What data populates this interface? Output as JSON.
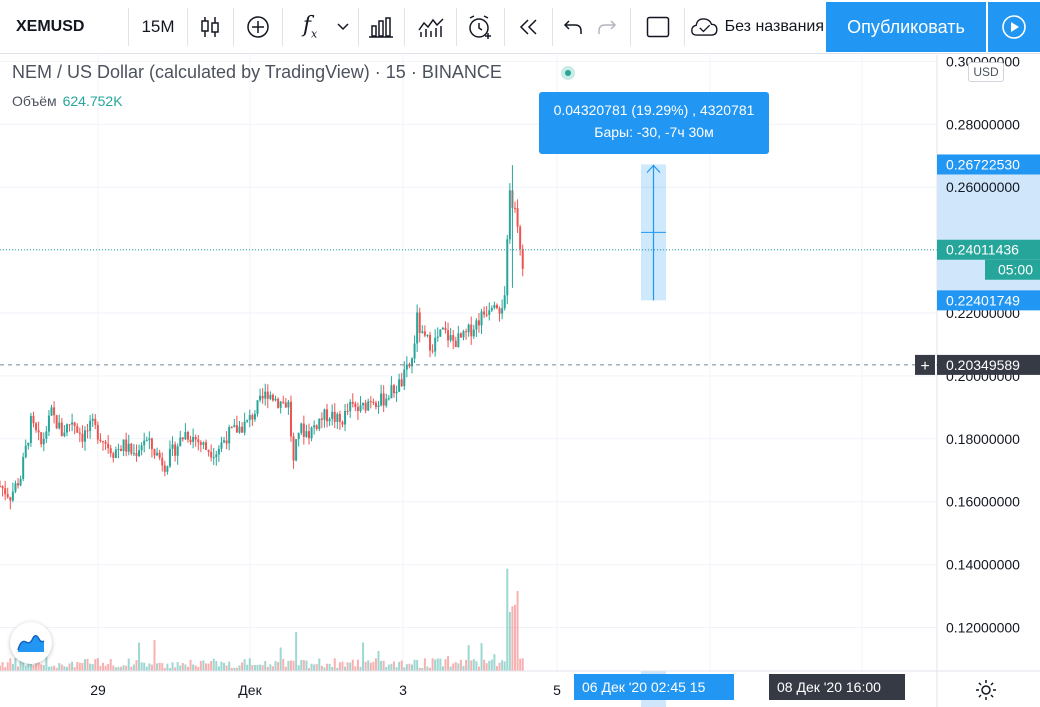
{
  "toolbar": {
    "symbol": "XEMUSD",
    "interval": "15M",
    "layout_name": "Без названия",
    "publish_label": "Опубликовать",
    "icons": [
      "candles-icon",
      "add-indicator-icon",
      "fx-icon",
      "chevron-down-icon",
      "bars-template-icon",
      "compare-icon",
      "alert-icon",
      "replay-icon",
      "undo-icon",
      "redo-icon",
      "fullscreen-icon",
      "cloud-save-icon",
      "play-icon"
    ]
  },
  "legend": {
    "title": "NEM / US Dollar (calculated by TradingView) · 15 · BINANCE",
    "volume_label": "Объём",
    "volume_value": "624.752K"
  },
  "currency_badge": "USD",
  "tooltip": {
    "line1": "0.04320781 (19.29%) , 4320781",
    "line2": "Бары: -30, -7ч 30м"
  },
  "price_axis": {
    "ticks": [
      "0.12000000",
      "0.14000000",
      "0.16000000",
      "0.18000000",
      "0.20000000",
      "0.22000000",
      "0.24000000",
      "0.26000000",
      "0.28000000",
      "0.30000000"
    ],
    "labels": {
      "range_top": "0.26722530",
      "last_price": "0.24011436",
      "countdown": "05:00",
      "range_bottom": "0.22401749",
      "crosshair": "0.20349589"
    }
  },
  "time_axis": {
    "ticks": [
      "29",
      "Дек",
      "3",
      "5"
    ],
    "range_label": "06 Дек '20   02:45  15",
    "crosshair_label": "08 Дек '20   16:00"
  },
  "colors": {
    "up": "#26a69a",
    "down": "#ef5350",
    "accent": "#2196f3",
    "last_price": "#26a69a",
    "crosshair_label": "#363a45"
  },
  "chart_data": {
    "type": "candlestick",
    "symbol": "XEMUSD",
    "interval": "15",
    "exchange": "BINANCE",
    "y_axis": {
      "min": 0.105,
      "max": 0.305,
      "unit": "USD"
    },
    "price_path": [
      [
        0,
        0.165
      ],
      [
        2,
        0.162
      ],
      [
        4,
        0.168
      ],
      [
        6,
        0.185
      ],
      [
        8,
        0.178
      ],
      [
        10,
        0.188
      ],
      [
        12,
        0.182
      ],
      [
        14,
        0.186
      ],
      [
        16,
        0.181
      ],
      [
        18,
        0.184
      ],
      [
        20,
        0.18
      ],
      [
        22,
        0.176
      ],
      [
        24,
        0.178
      ],
      [
        26,
        0.175
      ],
      [
        28,
        0.18
      ],
      [
        30,
        0.176
      ],
      [
        32,
        0.172
      ],
      [
        34,
        0.177
      ],
      [
        36,
        0.182
      ],
      [
        38,
        0.18
      ],
      [
        40,
        0.177
      ],
      [
        42,
        0.176
      ],
      [
        44,
        0.181
      ],
      [
        46,
        0.183
      ],
      [
        48,
        0.185
      ],
      [
        50,
        0.19
      ],
      [
        52,
        0.195
      ],
      [
        54,
        0.192
      ],
      [
        56,
        0.191
      ],
      [
        57,
        0.172
      ],
      [
        58,
        0.183
      ],
      [
        60,
        0.182
      ],
      [
        62,
        0.186
      ],
      [
        64,
        0.188
      ],
      [
        66,
        0.185
      ],
      [
        68,
        0.19
      ],
      [
        70,
        0.189
      ],
      [
        72,
        0.193
      ],
      [
        74,
        0.192
      ],
      [
        76,
        0.195
      ],
      [
        78,
        0.198
      ],
      [
        80,
        0.205
      ],
      [
        81,
        0.218
      ],
      [
        82,
        0.212
      ],
      [
        84,
        0.21
      ],
      [
        86,
        0.214
      ],
      [
        88,
        0.211
      ],
      [
        90,
        0.212
      ],
      [
        92,
        0.216
      ],
      [
        94,
        0.22
      ],
      [
        96,
        0.225
      ],
      [
        97,
        0.222
      ],
      [
        98,
        0.224
      ],
      [
        99,
        0.258
      ],
      [
        100,
        0.252
      ],
      [
        101,
        0.24
      ],
      [
        101.5,
        0.236
      ]
    ],
    "measure": {
      "from": 0.22401749,
      "to": 0.2672253,
      "change": 0.04320781,
      "change_pct": 19.29,
      "bars": -30,
      "duration": "-7ч 30м"
    },
    "last_price": 0.24011436,
    "crosshair_price": 0.20349589,
    "volume_last": "624.752K"
  }
}
